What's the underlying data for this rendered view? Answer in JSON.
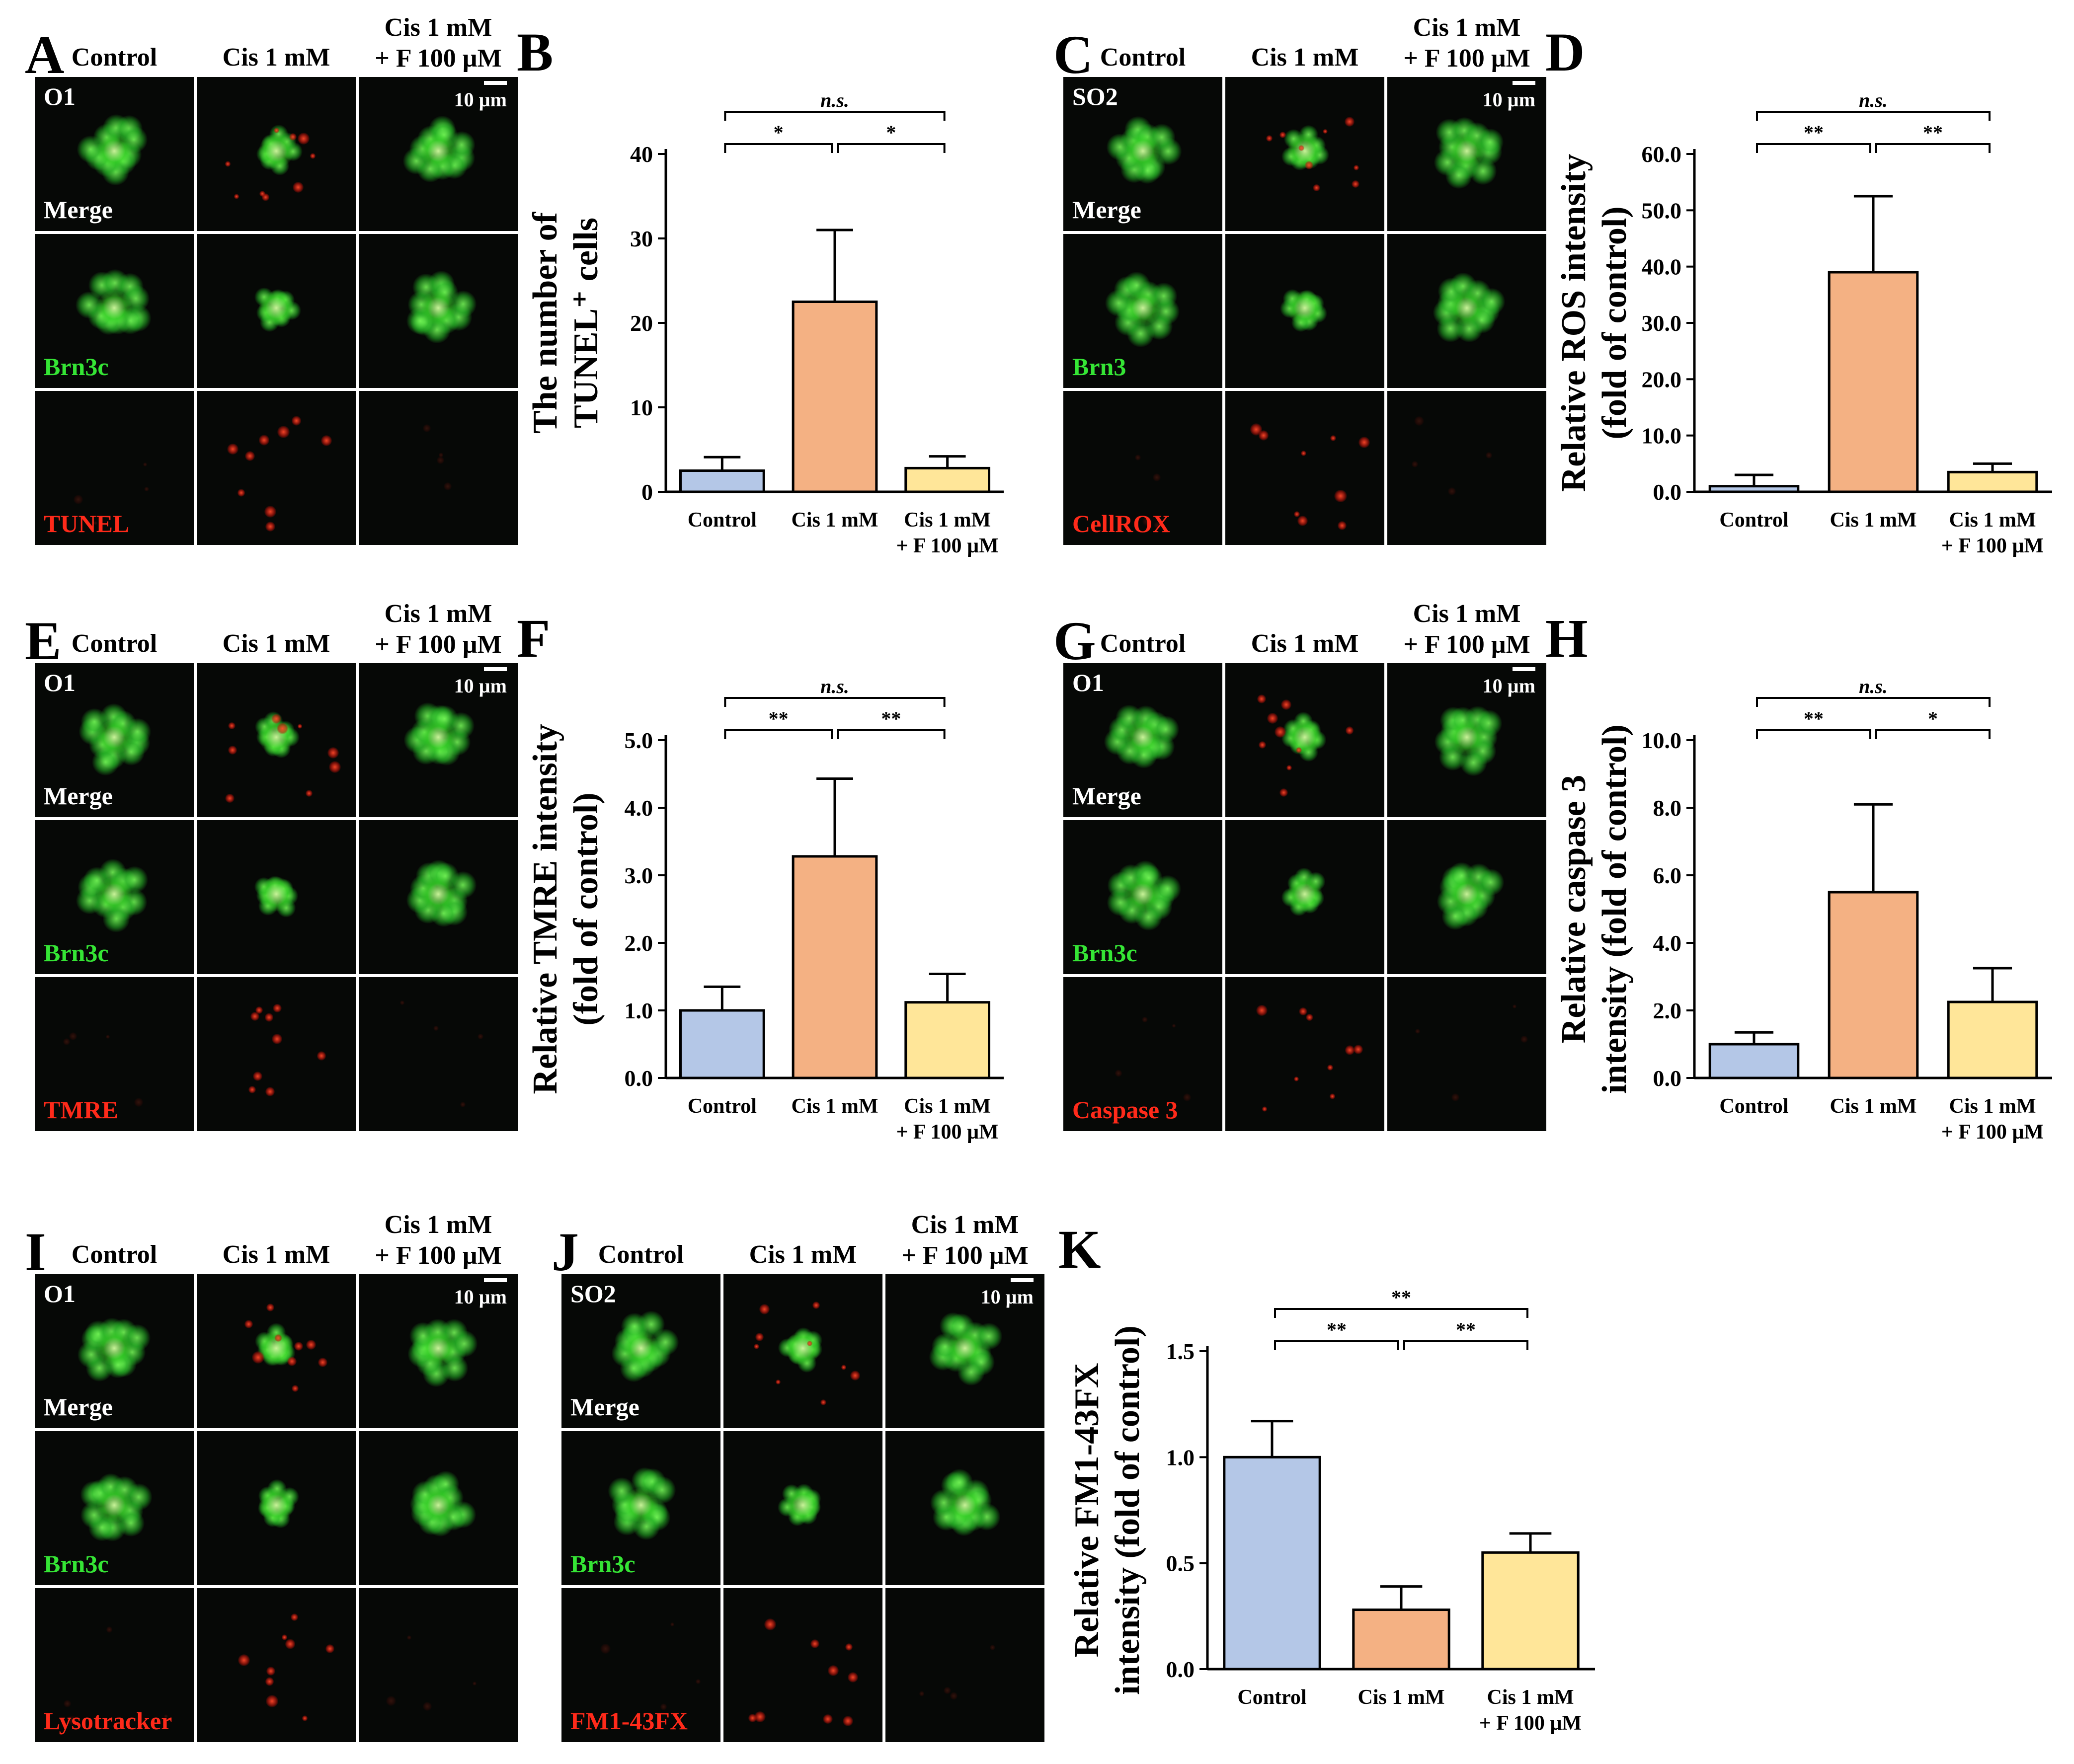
{
  "colors": {
    "control": "#b4c7e7",
    "cis": "#f4b183",
    "cisf": "#ffe699",
    "green_label": "#35e535",
    "red_label": "#ff2a1a"
  },
  "conditions": {
    "control": "Control",
    "cis": "Cis 1 mM",
    "cisf_line1": "Cis 1 mM",
    "cisf_line2": "+ F 100 µM"
  },
  "scale_bar": "10 µm",
  "panels": {
    "A": {
      "letter": "A",
      "marker": "O1",
      "rows": [
        "Merge",
        "Brn3c",
        "TUNEL"
      ]
    },
    "C": {
      "letter": "C",
      "marker": "SO2",
      "rows": [
        "Merge",
        "Brn3",
        "CellROX"
      ]
    },
    "E": {
      "letter": "E",
      "marker": "O1",
      "rows": [
        "Merge",
        "Brn3c",
        "TMRE"
      ]
    },
    "G": {
      "letter": "G",
      "marker": "O1",
      "rows": [
        "Merge",
        "Brn3c",
        "Caspase 3"
      ]
    },
    "I": {
      "letter": "I",
      "marker": "O1",
      "rows": [
        "Merge",
        "Brn3c",
        "Lysotracker"
      ]
    },
    "J": {
      "letter": "J",
      "marker": "SO2",
      "rows": [
        "Merge",
        "Brn3c",
        "FM1-43FX"
      ]
    }
  },
  "chart_data": [
    {
      "panel": "B",
      "type": "bar",
      "ylabel_line1": "The number of",
      "ylabel_line2": "TUNEL⁺ cells",
      "categories": [
        "Control",
        "Cis 1 mM",
        "Cis 1 mM + F 100 µM"
      ],
      "values": [
        2.5,
        22.5,
        2.8
      ],
      "errors": [
        1.6,
        8.5,
        1.4
      ],
      "ylim": [
        0,
        40
      ],
      "yticks": [
        "0",
        "10",
        "20",
        "30",
        "40"
      ],
      "significance": [
        {
          "pair": "Control-Cis",
          "text": "*"
        },
        {
          "pair": "Cis-CisF",
          "text": "*"
        },
        {
          "pair": "Control-CisF",
          "text": "n.s."
        }
      ]
    },
    {
      "panel": "D",
      "type": "bar",
      "ylabel_line1": "Relative ROS intensity",
      "ylabel_line2": "(fold of control)",
      "categories": [
        "Control",
        "Cis 1 mM",
        "Cis 1 mM + F 100 µM"
      ],
      "values": [
        1.0,
        39.0,
        3.5
      ],
      "errors": [
        2.0,
        13.5,
        1.5
      ],
      "ylim": [
        0,
        60
      ],
      "yticks": [
        "0.0",
        "10.0",
        "20.0",
        "30.0",
        "40.0",
        "50.0",
        "60.0"
      ],
      "significance": [
        {
          "pair": "Control-Cis",
          "text": "**"
        },
        {
          "pair": "Cis-CisF",
          "text": "**"
        },
        {
          "pair": "Control-CisF",
          "text": "n.s."
        }
      ]
    },
    {
      "panel": "F",
      "type": "bar",
      "ylabel_line1": "Relative TMRE intensity",
      "ylabel_line2": "(fold of control)",
      "categories": [
        "Control",
        "Cis 1 mM",
        "Cis 1 mM + F 100 µM"
      ],
      "values": [
        1.0,
        3.28,
        1.12
      ],
      "errors": [
        0.35,
        1.15,
        0.42
      ],
      "ylim": [
        0,
        5
      ],
      "yticks": [
        "0.0",
        "1.0",
        "2.0",
        "3.0",
        "4.0",
        "5.0"
      ],
      "significance": [
        {
          "pair": "Control-Cis",
          "text": "**"
        },
        {
          "pair": "Cis-CisF",
          "text": "**"
        },
        {
          "pair": "Control-CisF",
          "text": "n.s."
        }
      ]
    },
    {
      "panel": "H",
      "type": "bar",
      "ylabel_line1": "Relative caspase 3",
      "ylabel_line2": "intensity (fold of control)",
      "categories": [
        "Control",
        "Cis 1 mM",
        "Cis 1 mM + F 100 µM"
      ],
      "values": [
        1.0,
        5.5,
        2.25
      ],
      "errors": [
        0.35,
        2.6,
        1.0
      ],
      "ylim": [
        0,
        10
      ],
      "yticks": [
        "0.0",
        "2.0",
        "4.0",
        "6.0",
        "8.0",
        "10.0"
      ],
      "significance": [
        {
          "pair": "Control-Cis",
          "text": "**"
        },
        {
          "pair": "Cis-CisF",
          "text": "*"
        },
        {
          "pair": "Control-CisF",
          "text": "n.s."
        }
      ]
    },
    {
      "panel": "K",
      "type": "bar",
      "ylabel_line1": "Relative FM1-43FX",
      "ylabel_line2": "intensity (fold of control)",
      "categories": [
        "Control",
        "Cis 1 mM",
        "Cis 1 mM + F 100 µM"
      ],
      "values": [
        1.0,
        0.28,
        0.55
      ],
      "errors": [
        0.17,
        0.11,
        0.09
      ],
      "ylim": [
        0,
        1.5
      ],
      "yticks": [
        "0.0",
        "0.5",
        "1.0",
        "1.5"
      ],
      "significance": [
        {
          "pair": "Control-Cis",
          "text": "**"
        },
        {
          "pair": "Cis-CisF",
          "text": "**"
        },
        {
          "pair": "Control-CisF",
          "text": "**"
        }
      ]
    }
  ]
}
